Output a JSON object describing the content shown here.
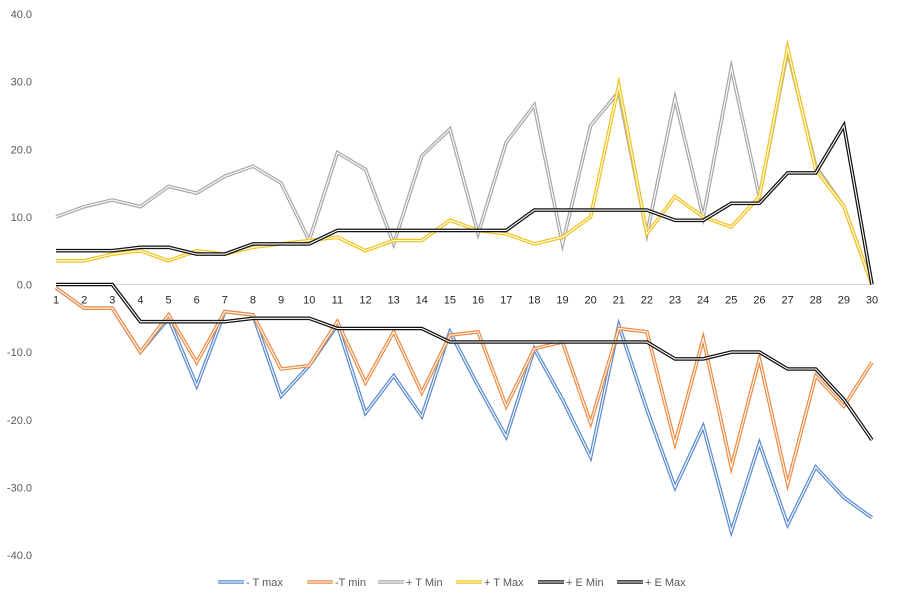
{
  "chart_data": {
    "type": "line",
    "categories": [
      "1",
      "2",
      "3",
      "4",
      "5",
      "6",
      "7",
      "8",
      "9",
      "10",
      "11",
      "12",
      "13",
      "14",
      "15",
      "16",
      "17",
      "18",
      "19",
      "20",
      "21",
      "22",
      "23",
      "24",
      "25",
      "26",
      "27",
      "28",
      "29",
      "30"
    ],
    "ylim": [
      -40,
      40
    ],
    "yticks": [
      40,
      30,
      20,
      10,
      0,
      -10,
      -20,
      -30,
      -40
    ],
    "ytick_labels": [
      "40.0",
      "30.0",
      "20.0",
      "10.0",
      "0.0",
      "-10.0",
      "-20.0",
      "-30.0",
      "-40.0"
    ],
    "grid": false,
    "legend_position": "bottom",
    "series": [
      {
        "name": "- T max",
        "color": "#5b8bd0",
        "values": [
          -0.5,
          -3.5,
          -3.5,
          -10,
          -5,
          -15,
          -4,
          -4.5,
          -16.5,
          -12,
          -6,
          -19,
          -13.5,
          -19.5,
          -7,
          -15,
          -22.5,
          -9.5,
          -17,
          -25.5,
          -6,
          -18.5,
          -30,
          -21,
          -36.5,
          -23.5,
          -35.5,
          -27,
          -31.5,
          -34.5
        ]
      },
      {
        "name": "-T min",
        "color": "#ed8b43",
        "values": [
          -0.5,
          -3.5,
          -3.5,
          -10,
          -4.5,
          -11.5,
          -4,
          -4.5,
          -12.5,
          -12,
          -5.5,
          -14.5,
          -7,
          -16,
          -7.5,
          -7,
          -18,
          -9.5,
          -8.5,
          -20.5,
          -6.5,
          -7,
          -23.5,
          -8,
          -27,
          -11,
          -29.5,
          -13.5,
          -18,
          -11.5
        ]
      },
      {
        "name": "+ T Min",
        "color": "#a8a8a8",
        "values": [
          10,
          11.5,
          12.5,
          11.5,
          14.5,
          13.5,
          16,
          17.5,
          15,
          6.5,
          19.5,
          17,
          6,
          19,
          23,
          7.5,
          21,
          26.5,
          6,
          23.5,
          28.5,
          7.5,
          27.5,
          10,
          32,
          13,
          34.5,
          17.5,
          11.5,
          0
        ]
      },
      {
        "name": "+ T Max",
        "color": "#f2c31d",
        "values": [
          3.5,
          3.5,
          4.5,
          5,
          3.5,
          5,
          4.5,
          5.5,
          6,
          6.5,
          7,
          5,
          6.5,
          6.5,
          9.5,
          8,
          7.5,
          6,
          7,
          10,
          29.5,
          7.5,
          13,
          10,
          8.5,
          13,
          35,
          17,
          11.5,
          0
        ]
      },
      {
        "name": "+ E Min",
        "color": "#111111",
        "values": [
          5,
          5,
          5,
          5.5,
          5.5,
          4.5,
          4.5,
          6,
          6,
          6,
          8,
          8,
          8,
          8,
          8,
          8,
          8,
          11,
          11,
          11,
          11,
          11,
          9.5,
          9.5,
          12,
          12,
          16.5,
          16.5,
          23.5,
          0
        ]
      },
      {
        "name": "+ E Max",
        "color": "#111111",
        "values": [
          0,
          0,
          0,
          -5.5,
          -5.5,
          -5.5,
          -5.5,
          -5,
          -5,
          -5,
          -6.5,
          -6.5,
          -6.5,
          -6.5,
          -8.5,
          -8.5,
          -8.5,
          -8.5,
          -8.5,
          -8.5,
          -8.5,
          -8.5,
          -11,
          -11,
          -10,
          -10,
          -12.5,
          -12.5,
          -17,
          -23
        ]
      }
    ]
  }
}
